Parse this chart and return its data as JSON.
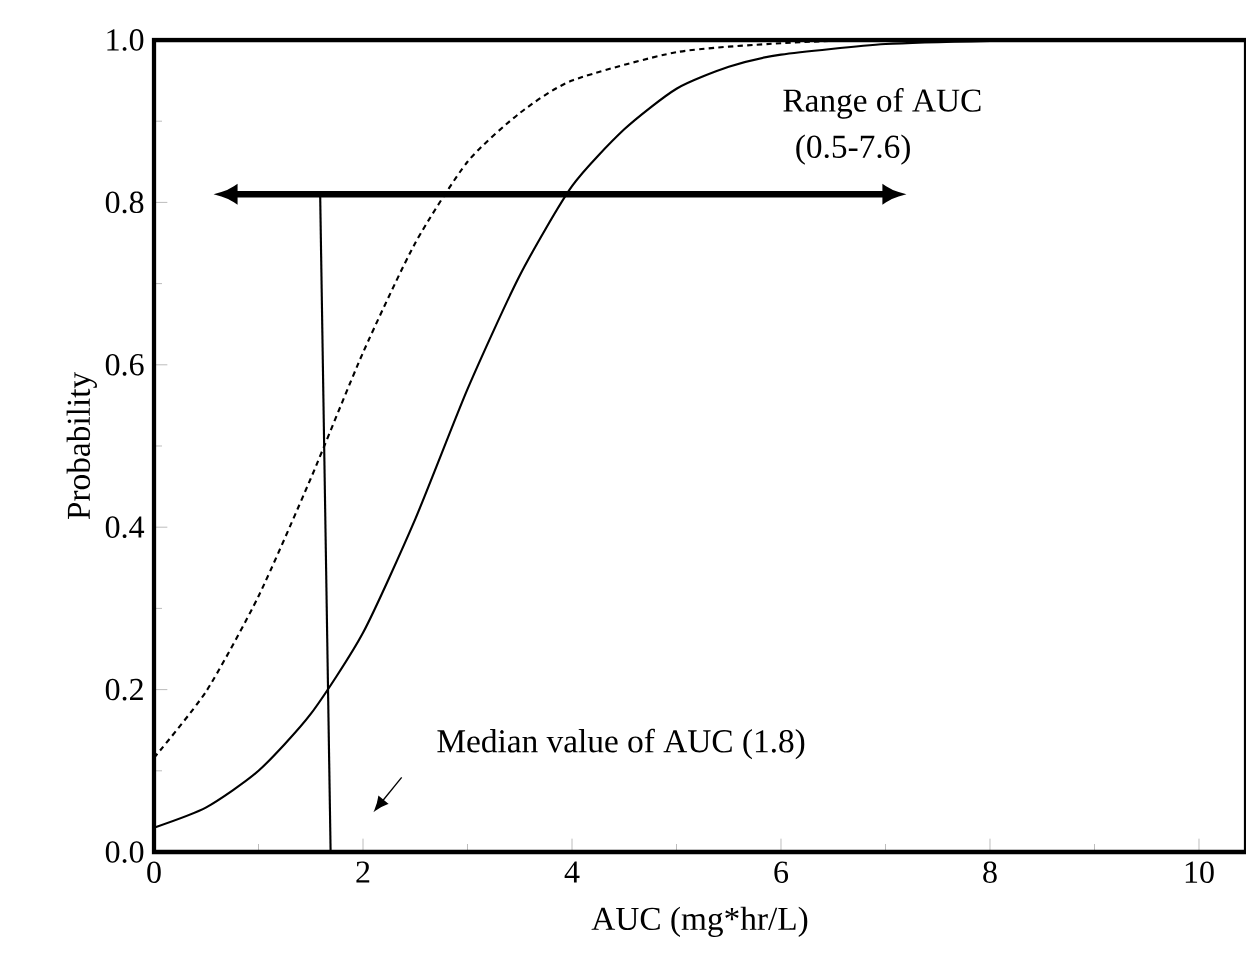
{
  "chart_data": {
    "type": "line",
    "xlabel": "AUC (mg*hr/L)",
    "ylabel": "Probability",
    "xlim": [
      0,
      10.45
    ],
    "ylim": [
      0,
      1
    ],
    "xticks": [
      0,
      2,
      4,
      6,
      8,
      10
    ],
    "yticks": [
      {
        "value": 0,
        "label": "0.0"
      },
      {
        "value": 0.2,
        "label": "0.2"
      },
      {
        "value": 0.4,
        "label": "0.4"
      },
      {
        "value": 0.6,
        "label": "0.6"
      },
      {
        "value": 0.8,
        "label": "0.8"
      },
      {
        "value": 1,
        "label": "1.0"
      }
    ],
    "series": [
      {
        "color": "#000000",
        "line_style": "solid",
        "x": [
          0,
          0.5,
          1,
          1.5,
          2,
          2.5,
          3,
          3.5,
          4,
          4.5,
          5,
          5.5,
          6,
          7,
          8,
          9,
          10.45
        ],
        "values": [
          0.03,
          0.055,
          0.1,
          0.17,
          0.27,
          0.41,
          0.57,
          0.71,
          0.82,
          0.89,
          0.94,
          0.967,
          0.982,
          0.995,
          0.999,
          1,
          1
        ]
      },
      {
        "color": "#000000",
        "line_style": "dashed",
        "x": [
          0,
          0.5,
          1,
          1.5,
          2,
          2.5,
          3,
          3.5,
          4,
          5,
          6,
          7,
          10.45
        ],
        "values": [
          0.116,
          0.198,
          0.315,
          0.46,
          0.615,
          0.75,
          0.85,
          0.91,
          0.95,
          0.985,
          0.996,
          1,
          1
        ]
      },
      {
        "color": "#000000",
        "line_style": "solid",
        "x": [
          1.59,
          1.69
        ],
        "values": [
          0.81,
          0
        ]
      }
    ],
    "annotations": [
      "Range of AUC",
      "(0.5-7.6)",
      "Median value of AUC (1.8)"
    ]
  }
}
